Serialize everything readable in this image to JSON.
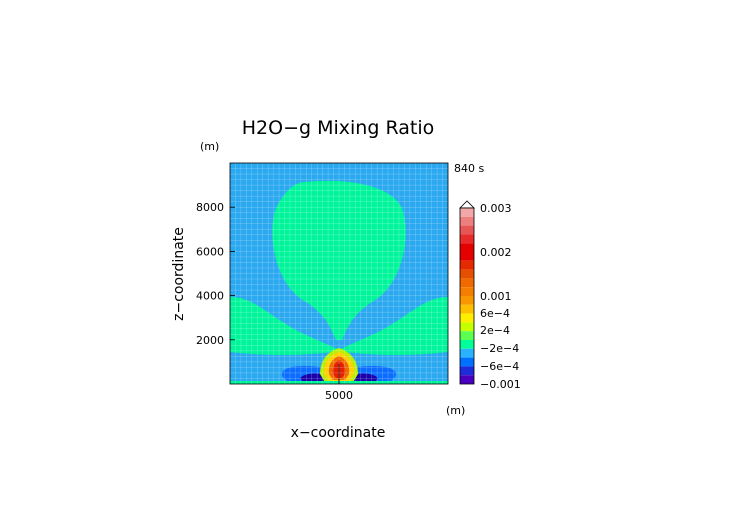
{
  "chart_data": {
    "type": "heatmap",
    "title": "H2O−g Mixing Ratio",
    "time_label": "840 s",
    "xlabel": "x−coordinate",
    "ylabel": "z−coordinate",
    "x_unit": "(m)",
    "y_unit": "(m)",
    "xlim": [
      0,
      10000
    ],
    "ylim": [
      0,
      10000
    ],
    "x_ticks": [
      {
        "value": 5000,
        "label": "5000"
      }
    ],
    "y_ticks": [
      {
        "value": 2000,
        "label": "2000"
      },
      {
        "value": 4000,
        "label": "4000"
      },
      {
        "value": 6000,
        "label": "6000"
      },
      {
        "value": 8000,
        "label": "8000"
      }
    ],
    "grid": true,
    "colorbar": {
      "labels": [
        "0.003",
        "0.002",
        "0.001",
        "6e−4",
        "2e−4",
        "−2e−4",
        "−6e−4",
        "−0.001"
      ],
      "levels": [
        {
          "from": 0.0028,
          "to": 0.003,
          "color": "#f2a8a8"
        },
        {
          "from": 0.0026,
          "to": 0.0028,
          "color": "#ee7f7f"
        },
        {
          "from": 0.0024,
          "to": 0.0026,
          "color": "#e85555"
        },
        {
          "from": 0.0022,
          "to": 0.0024,
          "color": "#e72a2a"
        },
        {
          "from": 0.002,
          "to": 0.0022,
          "color": "#e50000"
        },
        {
          "from": 0.0018,
          "to": 0.002,
          "color": "#e50000"
        },
        {
          "from": 0.0016,
          "to": 0.0018,
          "color": "#e52a00"
        },
        {
          "from": 0.0014,
          "to": 0.0016,
          "color": "#e55000"
        },
        {
          "from": 0.0012,
          "to": 0.0014,
          "color": "#f06a00"
        },
        {
          "from": 0.001,
          "to": 0.0012,
          "color": "#f57d00"
        },
        {
          "from": 0.0008,
          "to": 0.001,
          "color": "#fa9600"
        },
        {
          "from": 0.0006,
          "to": 0.0008,
          "color": "#fcc000"
        },
        {
          "from": 0.0004,
          "to": 0.0006,
          "color": "#ffee00"
        },
        {
          "from": 0.0002,
          "to": 0.0004,
          "color": "#c6ff00"
        },
        {
          "from": 0.0,
          "to": 0.0002,
          "color": "#5aff50"
        },
        {
          "from": -0.0002,
          "to": 0.0,
          "color": "#00ff9a"
        },
        {
          "from": -0.0004,
          "to": -0.0002,
          "color": "#29b2ff"
        },
        {
          "from": -0.0006,
          "to": -0.0004,
          "color": "#0070ff"
        },
        {
          "from": -0.0008,
          "to": -0.0006,
          "color": "#1f2adb"
        },
        {
          "from": -0.001,
          "to": -0.0008,
          "color": "#4a00c0"
        }
      ]
    },
    "field_regions": [
      {
        "level": -0.0003,
        "color": "#2aa8f0",
        "description": "background"
      },
      {
        "level": 0.0001,
        "color": "#00f59a",
        "description": "upper plume"
      },
      {
        "level": 0.0001,
        "color": "#00f59a",
        "description": "low-level wings"
      },
      {
        "level": -0.0005,
        "color": "#0a6dff",
        "description": "near-surface lobes"
      },
      {
        "level": -0.0009,
        "color": "#1a00a8",
        "description": "lobe cores"
      },
      {
        "level": 0.0003,
        "color": "#b4f000",
        "description": "source outer"
      },
      {
        "level": 0.0005,
        "color": "#ffd000",
        "description": "source"
      },
      {
        "level": 0.0012,
        "color": "#f06a00",
        "description": "source inner"
      },
      {
        "level": 0.0018,
        "color": "#e52000",
        "description": "source core"
      }
    ]
  }
}
